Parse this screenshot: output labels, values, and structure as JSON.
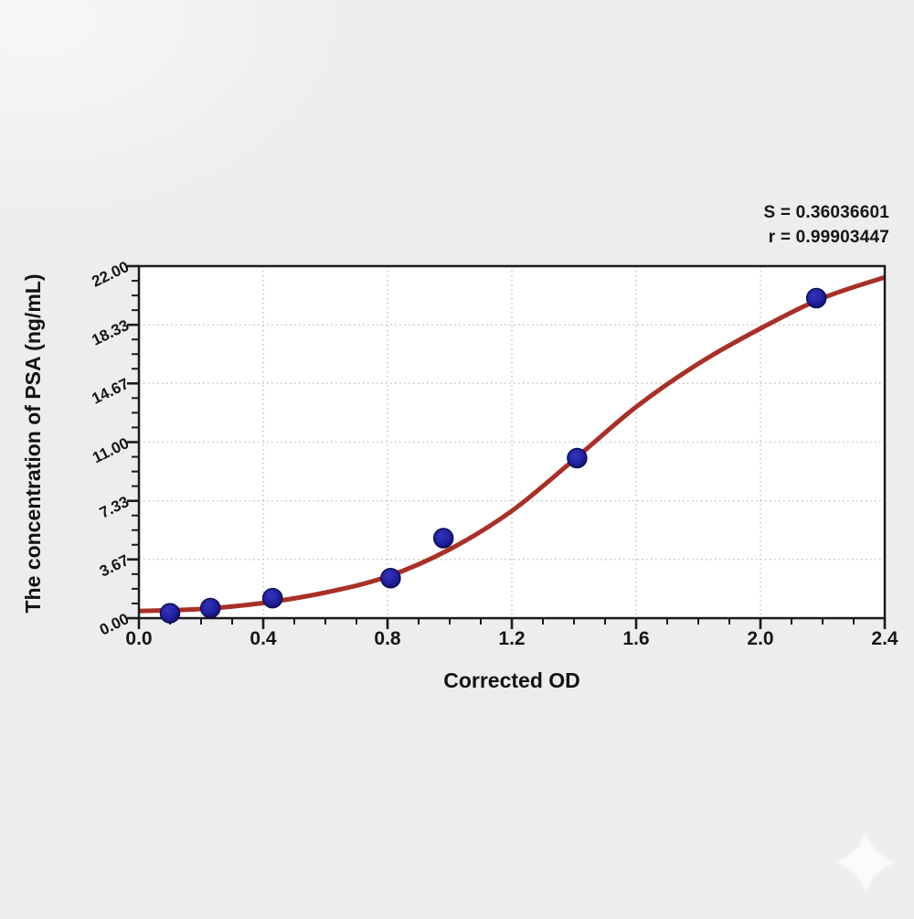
{
  "page": {
    "background": "#ededee"
  },
  "chart_data": {
    "type": "scatter",
    "title": "",
    "xlabel": "Corrected OD",
    "ylabel": "The concentration of PSA (ng/mL)",
    "xlim": [
      0.0,
      2.4
    ],
    "ylim": [
      0.0,
      22.0
    ],
    "x_ticks": [
      "0.0",
      "0.4",
      "0.8",
      "1.2",
      "1.6",
      "2.0",
      "2.4"
    ],
    "y_ticks": [
      "0.00",
      "3.67",
      "7.33",
      "11.00",
      "14.67",
      "18.33",
      "22.00"
    ],
    "minor_ticks_per_interval": 3,
    "grid": "dotted",
    "legend_position": "none",
    "annotations": [
      "S = 0.36036601",
      "r = 0.99903447"
    ],
    "series": [
      {
        "name": "standard-points",
        "type": "scatter",
        "points": [
          [
            0.1,
            0.31
          ],
          [
            0.23,
            0.63
          ],
          [
            0.43,
            1.25
          ],
          [
            0.81,
            2.5
          ],
          [
            0.98,
            5.0
          ],
          [
            1.41,
            10.0
          ],
          [
            2.18,
            20.0
          ]
        ]
      },
      {
        "name": "4pl-fit-curve",
        "type": "line",
        "points": [
          [
            0.0,
            0.45
          ],
          [
            0.2,
            0.57
          ],
          [
            0.4,
            0.95
          ],
          [
            0.6,
            1.6
          ],
          [
            0.8,
            2.6
          ],
          [
            1.0,
            4.3
          ],
          [
            1.2,
            6.7
          ],
          [
            1.4,
            9.9
          ],
          [
            1.6,
            13.2
          ],
          [
            1.8,
            15.9
          ],
          [
            2.0,
            18.1
          ],
          [
            2.2,
            20.0
          ],
          [
            2.4,
            21.3
          ]
        ]
      }
    ],
    "colors": {
      "curve": "#a93026",
      "point_fill": "#1f1f9e",
      "point_edge": "#0d0d55",
      "grid": "#c5c5c5",
      "axis": "#1a1a1a",
      "text": "#161616",
      "plot_background": "#ffffff"
    }
  },
  "watermark": {
    "icon": "sparkle",
    "color": "#ffffff"
  }
}
